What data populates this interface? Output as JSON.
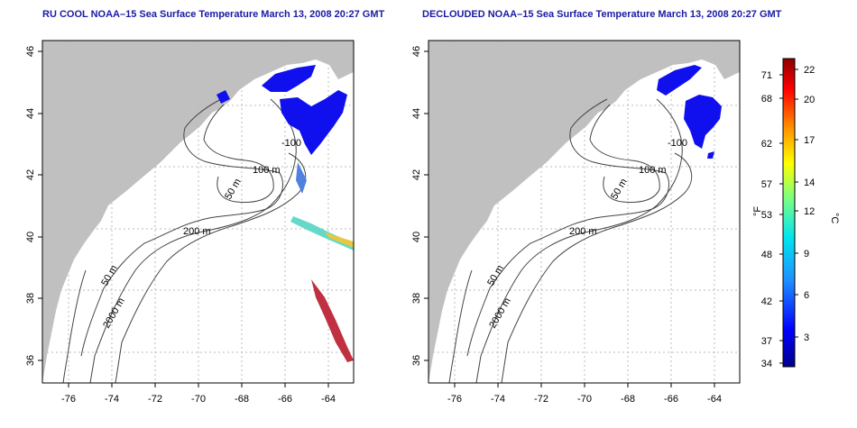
{
  "panels": [
    {
      "title": "RU COOL NOAA–15 Sea Surface Temperature March 13, 2008 20:27 GMT",
      "x_ticks": [
        "-76",
        "-74",
        "-72",
        "-70",
        "-68",
        "-66",
        "-64"
      ],
      "y_ticks": [
        "36",
        "38",
        "40",
        "42",
        "44",
        "46"
      ],
      "contour_labels": [
        "100 m",
        "-100",
        "50 m",
        "200 m",
        "50 m",
        "2000 m"
      ]
    },
    {
      "title": "DECLOUDED NOAA–15 Sea Surface Temperature March 13, 2008 20:27 GMT",
      "x_ticks": [
        "-76",
        "-74",
        "-72",
        "-70",
        "-68",
        "-66",
        "-64"
      ],
      "y_ticks": [
        "36",
        "38",
        "40",
        "42",
        "44",
        "46"
      ],
      "contour_labels": [
        "100 m",
        "-100",
        "50 m",
        "200 m",
        "50 m",
        "2000 m"
      ]
    }
  ],
  "colorbar": {
    "f_label": "°F",
    "c_label": "°C",
    "f_ticks": [
      "71",
      "68",
      "62",
      "57",
      "53",
      "48",
      "42",
      "37",
      "34"
    ],
    "c_ticks": [
      "22",
      "20",
      "17",
      "14",
      "12",
      "9",
      "6",
      "3"
    ]
  },
  "colors": {
    "land": "#c0c0c0",
    "cold_patch": "#1010ee",
    "title_text": "#1a1aa6",
    "grid": "#bbbbbb"
  }
}
